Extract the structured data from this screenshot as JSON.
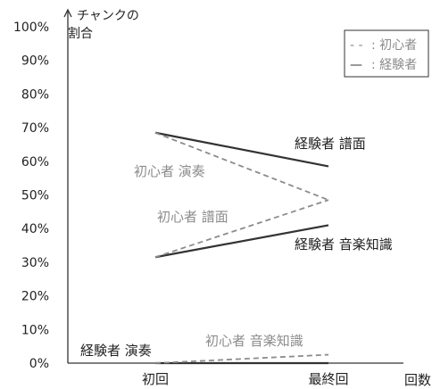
{
  "chart_data": {
    "type": "line",
    "x": [
      "初回",
      "最終回"
    ],
    "xlabel": "回数",
    "ylabel": [
      "チャンクの",
      "割合"
    ],
    "ylim": [
      0,
      100
    ],
    "yticks": [
      0,
      10,
      20,
      30,
      40,
      50,
      60,
      70,
      80,
      90,
      100
    ],
    "ytick_format": "%",
    "grid": false,
    "legend_position": "top-right",
    "legend": [
      {
        "marker": "- -",
        "label": "初心者",
        "style": "dashed"
      },
      {
        "marker": "—",
        "label": "経験者",
        "style": "solid"
      }
    ],
    "series": [
      {
        "name": "経験者 譜面",
        "group": "経験者",
        "style": "solid",
        "values": [
          68.5,
          58.5
        ]
      },
      {
        "name": "経験者 音楽知識",
        "group": "経験者",
        "style": "solid",
        "values": [
          31.5,
          41
        ]
      },
      {
        "name": "経験者 演奏",
        "group": "経験者",
        "style": "solid",
        "values": [
          0,
          0
        ]
      },
      {
        "name": "初心者 演奏",
        "group": "初心者",
        "style": "dashed",
        "values": [
          68.5,
          48.5
        ]
      },
      {
        "name": "初心者 譜面",
        "group": "初心者",
        "style": "dashed",
        "values": [
          31.5,
          48.5
        ]
      },
      {
        "name": "初心者 音楽知識",
        "group": "初心者",
        "style": "dashed",
        "values": [
          0,
          2.5
        ]
      }
    ],
    "colors": {
      "solid": "#333333",
      "dashed": "#8c8c8c",
      "axis": "#333333",
      "text": "#222222",
      "text_muted": "#8c8c8c"
    }
  }
}
